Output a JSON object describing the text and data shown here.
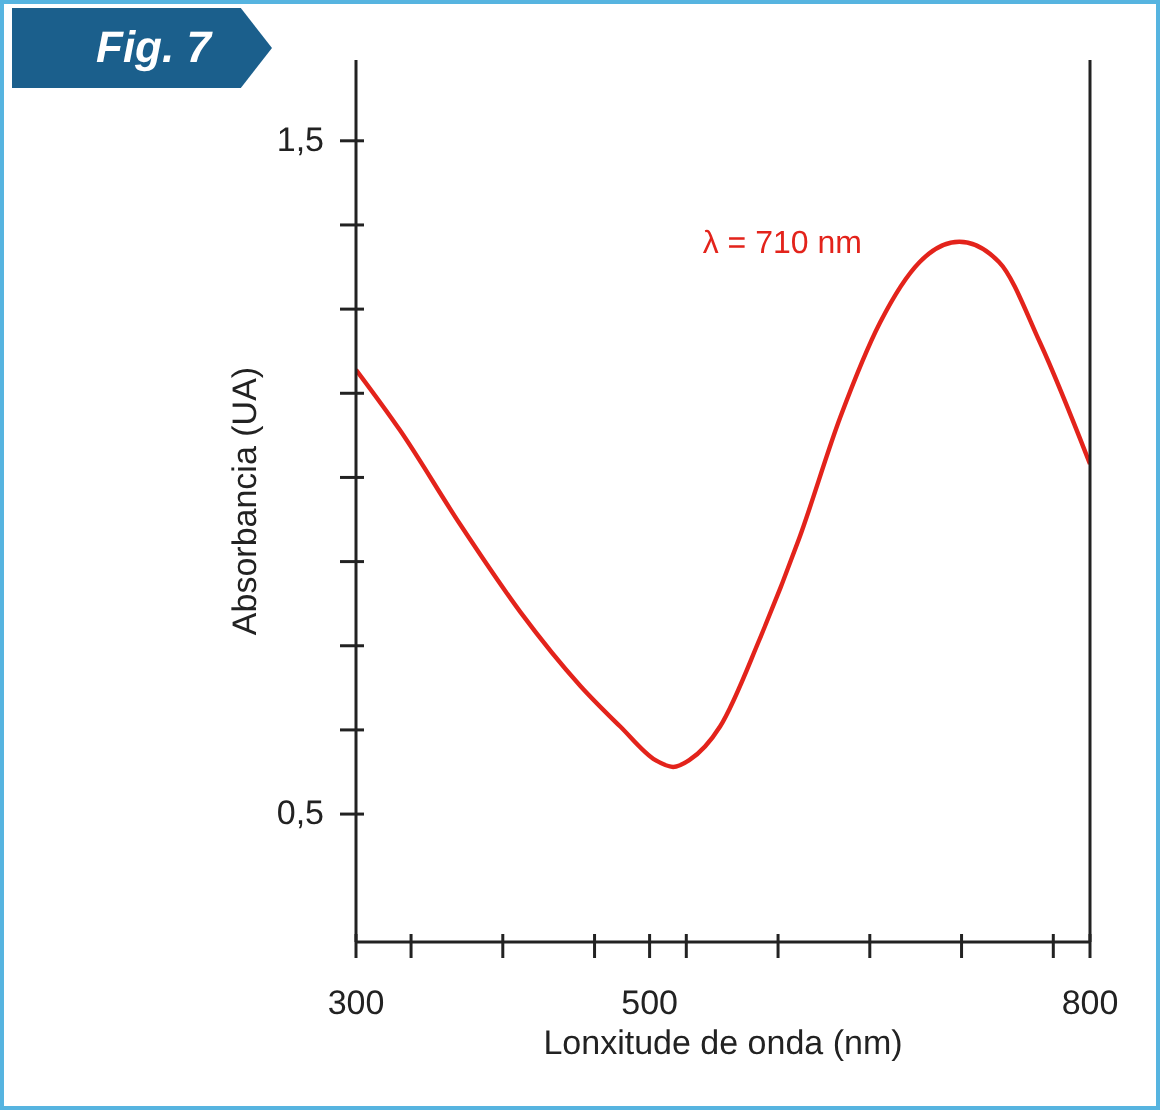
{
  "chart_data": {
    "type": "line",
    "title": "Fig. 7",
    "xlabel": "Lonxitude de onda (nm)",
    "ylabel": "Absorbancia (UA)",
    "x": [
      300,
      330,
      371,
      412,
      453,
      480,
      504,
      516,
      527,
      548,
      575,
      602,
      630,
      657,
      684,
      711,
      738,
      766,
      800
    ],
    "series": [
      {
        "color": "#e3231b",
        "values": [
          1.16,
          1.07,
          0.93,
          0.8,
          0.69,
          0.63,
          0.58,
          0.57,
          0.58,
          0.63,
          0.76,
          0.91,
          1.09,
          1.23,
          1.32,
          1.35,
          1.32,
          1.2,
          1.02
        ]
      }
    ],
    "xlim": [
      300,
      800
    ],
    "xticks": [
      300,
      {
        "value": 337.5,
        "label": null
      },
      {
        "value": 400,
        "label": null
      },
      {
        "value": 462.5,
        "label": null
      },
      500,
      {
        "value": 525,
        "label": null
      },
      {
        "value": 587.5,
        "label": null
      },
      {
        "value": 650,
        "label": null
      },
      {
        "value": 712.5,
        "label": null
      },
      {
        "value": 775,
        "label": null
      },
      800
    ],
    "ylim": [
      0.31,
      1.62
    ],
    "yticks": [
      {
        "value": 0.5,
        "label": "0,5"
      },
      {
        "value": 0.625,
        "label": null
      },
      {
        "value": 0.75,
        "label": null
      },
      {
        "value": 0.875,
        "label": null
      },
      {
        "value": 1,
        "label": null
      },
      {
        "value": 1.125,
        "label": null
      },
      {
        "value": 1.25,
        "label": null
      },
      {
        "value": 1.375,
        "label": null
      },
      {
        "value": 1.5,
        "label": "1,5"
      }
    ],
    "annotations": [
      {
        "text": "λ = 710 nm",
        "x": 710,
        "y": 1.35
      }
    ],
    "marker": "none",
    "line_style": "solid"
  }
}
